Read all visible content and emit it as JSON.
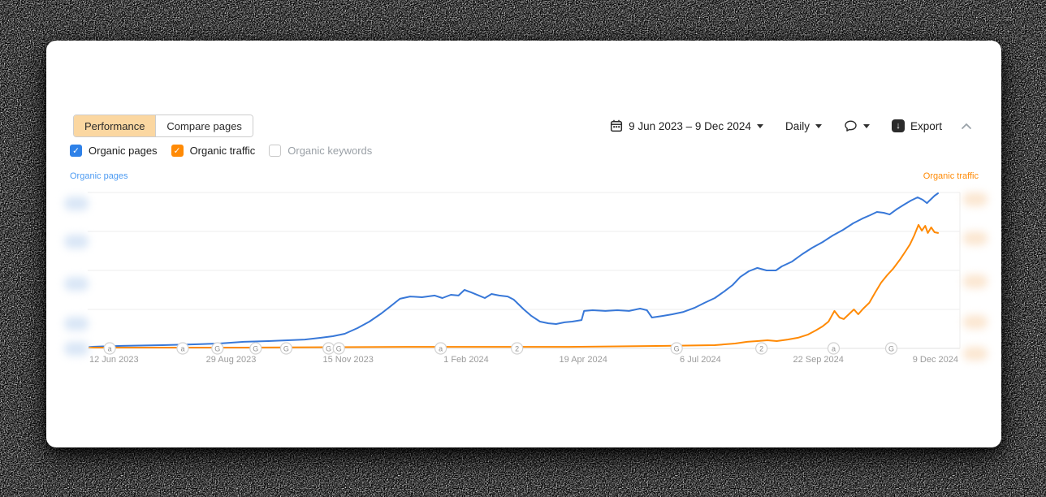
{
  "tabs": {
    "performance": "Performance",
    "compare_pages": "Compare pages",
    "active": "Performance"
  },
  "metric_toggles": [
    {
      "label": "Organic pages",
      "checked": true,
      "muted": false,
      "color": "#2e81e8"
    },
    {
      "label": "Organic traffic",
      "checked": true,
      "muted": false,
      "color": "#ff8a05"
    },
    {
      "label": "Organic keywords",
      "checked": false,
      "muted": true,
      "color": "#ffffff"
    }
  ],
  "toolbar": {
    "date_range": "9 Jun 2023 – 9 Dec 2024",
    "granularity": "Daily",
    "export_label": "Export",
    "icons": [
      "calendar-icon",
      "caret-down-icon",
      "comment-icon",
      "export-icon",
      "collapse-chevron-icon"
    ]
  },
  "chart_data": {
    "type": "line",
    "title": "",
    "x_range": [
      "9 Jun 2023",
      "9 Dec 2024"
    ],
    "granularity": "Daily",
    "grid": "horizontal",
    "legend_position": "axis-titles",
    "axis_values_redacted": true,
    "value_unit": "percent_of_chart_height",
    "gridline_values": [
      0,
      25,
      50,
      75,
      100
    ],
    "axis_titles": {
      "left": {
        "text": "Organic pages",
        "color": "#4d9bf2"
      },
      "right": {
        "text": "Organic traffic",
        "color": "#ff8a05"
      }
    },
    "x_ticks": [
      {
        "x": 0.029,
        "label": "12 Jun 2023"
      },
      {
        "x": 0.167,
        "label": "29 Aug 2023"
      },
      {
        "x": 0.305,
        "label": "15 Nov 2023"
      },
      {
        "x": 0.444,
        "label": "1 Feb 2024"
      },
      {
        "x": 0.582,
        "label": "19 Apr 2024"
      },
      {
        "x": 0.72,
        "label": "6 Jul 2024"
      },
      {
        "x": 0.859,
        "label": "22 Sep 2024"
      },
      {
        "x": 0.997,
        "label": "9 Dec 2024"
      }
    ],
    "annotations": [
      {
        "x": 0.024,
        "label": "a"
      },
      {
        "x": 0.11,
        "label": "a"
      },
      {
        "x": 0.151,
        "label": "G"
      },
      {
        "x": 0.196,
        "label": "G"
      },
      {
        "x": 0.232,
        "label": "G"
      },
      {
        "x": 0.282,
        "label": "G"
      },
      {
        "x": 0.294,
        "label": "G"
      },
      {
        "x": 0.414,
        "label": "a"
      },
      {
        "x": 0.504,
        "label": "2"
      },
      {
        "x": 0.692,
        "label": "G"
      },
      {
        "x": 0.792,
        "label": "2"
      },
      {
        "x": 0.877,
        "label": "a"
      },
      {
        "x": 0.945,
        "label": "G"
      }
    ],
    "series": [
      {
        "name": "Organic pages",
        "axis": "left",
        "color": "#3878d8",
        "points": [
          [
            0.0,
            1.0
          ],
          [
            0.038,
            1.6
          ],
          [
            0.086,
            2.1
          ],
          [
            0.124,
            2.6
          ],
          [
            0.153,
            3.1
          ],
          [
            0.182,
            4.2
          ],
          [
            0.211,
            4.7
          ],
          [
            0.234,
            5.2
          ],
          [
            0.254,
            5.7
          ],
          [
            0.273,
            6.8
          ],
          [
            0.287,
            7.8
          ],
          [
            0.301,
            9.4
          ],
          [
            0.316,
            13.0
          ],
          [
            0.33,
            17.2
          ],
          [
            0.344,
            22.4
          ],
          [
            0.354,
            26.6
          ],
          [
            0.366,
            31.8
          ],
          [
            0.378,
            33.3
          ],
          [
            0.392,
            32.8
          ],
          [
            0.407,
            33.9
          ],
          [
            0.416,
            32.3
          ],
          [
            0.426,
            34.4
          ],
          [
            0.435,
            33.9
          ],
          [
            0.442,
            37.5
          ],
          [
            0.45,
            35.9
          ],
          [
            0.459,
            33.9
          ],
          [
            0.466,
            32.3
          ],
          [
            0.474,
            34.9
          ],
          [
            0.483,
            33.9
          ],
          [
            0.493,
            33.3
          ],
          [
            0.5,
            31.3
          ],
          [
            0.512,
            25.0
          ],
          [
            0.521,
            20.8
          ],
          [
            0.531,
            17.2
          ],
          [
            0.541,
            16.1
          ],
          [
            0.55,
            15.6
          ],
          [
            0.56,
            16.7
          ],
          [
            0.569,
            17.2
          ],
          [
            0.58,
            18.2
          ],
          [
            0.583,
            24.0
          ],
          [
            0.593,
            24.5
          ],
          [
            0.608,
            24.0
          ],
          [
            0.622,
            24.5
          ],
          [
            0.636,
            24.0
          ],
          [
            0.649,
            25.5
          ],
          [
            0.657,
            24.5
          ],
          [
            0.663,
            19.8
          ],
          [
            0.675,
            20.8
          ],
          [
            0.687,
            21.9
          ],
          [
            0.7,
            23.4
          ],
          [
            0.713,
            26.0
          ],
          [
            0.725,
            29.2
          ],
          [
            0.737,
            32.3
          ],
          [
            0.748,
            36.5
          ],
          [
            0.758,
            40.6
          ],
          [
            0.767,
            45.8
          ],
          [
            0.777,
            49.5
          ],
          [
            0.787,
            51.6
          ],
          [
            0.798,
            50.0
          ],
          [
            0.809,
            50.0
          ],
          [
            0.816,
            52.6
          ],
          [
            0.828,
            55.7
          ],
          [
            0.84,
            60.4
          ],
          [
            0.852,
            64.6
          ],
          [
            0.864,
            68.2
          ],
          [
            0.876,
            72.4
          ],
          [
            0.888,
            76.0
          ],
          [
            0.9,
            80.2
          ],
          [
            0.911,
            83.3
          ],
          [
            0.92,
            85.4
          ],
          [
            0.928,
            87.5
          ],
          [
            0.936,
            87.0
          ],
          [
            0.943,
            85.9
          ],
          [
            0.951,
            89.1
          ],
          [
            0.96,
            92.2
          ],
          [
            0.968,
            94.8
          ],
          [
            0.976,
            96.9
          ],
          [
            0.982,
            95.3
          ],
          [
            0.987,
            93.2
          ],
          [
            0.991,
            95.3
          ],
          [
            0.996,
            97.9
          ],
          [
            1.0,
            99.5
          ]
        ]
      },
      {
        "name": "Organic traffic",
        "axis": "right",
        "color": "#ff8a05",
        "points": [
          [
            0.0,
            0.5
          ],
          [
            0.182,
            0.5
          ],
          [
            0.373,
            1.0
          ],
          [
            0.565,
            1.0
          ],
          [
            0.679,
            1.6
          ],
          [
            0.737,
            2.1
          ],
          [
            0.761,
            3.1
          ],
          [
            0.775,
            4.2
          ],
          [
            0.787,
            4.7
          ],
          [
            0.799,
            5.2
          ],
          [
            0.81,
            4.7
          ],
          [
            0.823,
            5.7
          ],
          [
            0.835,
            6.8
          ],
          [
            0.847,
            8.9
          ],
          [
            0.856,
            11.5
          ],
          [
            0.864,
            14.1
          ],
          [
            0.871,
            17.2
          ],
          [
            0.878,
            24.0
          ],
          [
            0.884,
            19.8
          ],
          [
            0.889,
            18.8
          ],
          [
            0.896,
            22.4
          ],
          [
            0.901,
            25.0
          ],
          [
            0.906,
            21.9
          ],
          [
            0.912,
            25.5
          ],
          [
            0.919,
            29.2
          ],
          [
            0.926,
            35.9
          ],
          [
            0.933,
            42.2
          ],
          [
            0.94,
            46.9
          ],
          [
            0.947,
            51.0
          ],
          [
            0.955,
            56.8
          ],
          [
            0.962,
            62.5
          ],
          [
            0.967,
            66.7
          ],
          [
            0.972,
            72.4
          ],
          [
            0.977,
            79.2
          ],
          [
            0.981,
            75.5
          ],
          [
            0.985,
            78.6
          ],
          [
            0.988,
            74.0
          ],
          [
            0.992,
            77.6
          ],
          [
            0.996,
            74.5
          ],
          [
            1.0,
            74.0
          ]
        ]
      }
    ],
    "redacted_axis_blobs": {
      "left_y_centers": [
        250,
        297,
        349,
        398,
        429
      ],
      "right_y_centers": [
        245,
        293,
        346,
        396,
        435
      ]
    }
  }
}
